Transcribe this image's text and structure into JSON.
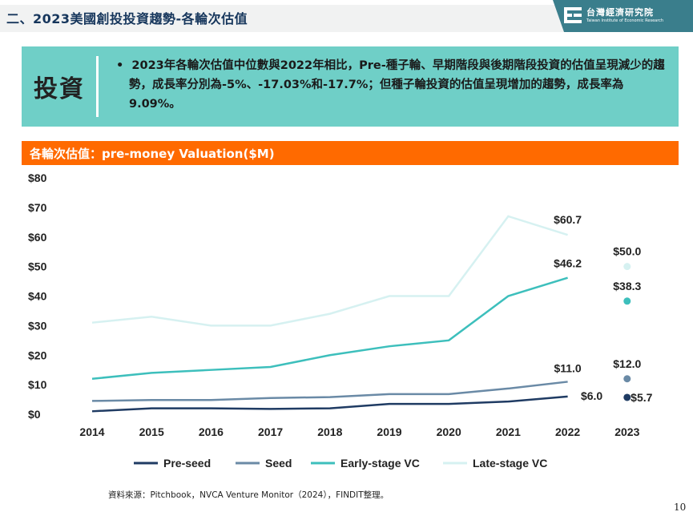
{
  "header": {
    "title": "二、2023美國創投投資趨勢-各輪次估值",
    "logo_name": "台灣經濟研究院",
    "logo_sub": "Taiwan Institute of Economic Research"
  },
  "summary": {
    "label": "投資",
    "bullet": "•",
    "text": "2023年各輪次估值中位數與2022年相比，Pre-種子輪、早期階段與後期階段投資的估值呈現減少的趨勢，成長率分別為-5%、-17.03%和-17.7%；但種子輪投資的估值呈現增加的趨勢，成長率為9.09%。"
  },
  "chart_title": "各輪次估值：pre-money Valuation($M)",
  "chart_data": {
    "type": "line",
    "title": "各輪次估值：pre-money Valuation($M)",
    "categories": [
      "2014",
      "2015",
      "2016",
      "2017",
      "2018",
      "2019",
      "2020",
      "2021",
      "2022",
      "2023"
    ],
    "y_ticks": [
      "$0",
      "$10",
      "$20",
      "$30",
      "$40",
      "$50",
      "$60",
      "$70",
      "$80"
    ],
    "ylim": [
      0,
      80
    ],
    "legend_position": "bottom",
    "grid": false,
    "series": [
      {
        "name": "Pre-seed",
        "color": "#1f3b63",
        "values": [
          1.0,
          2.0,
          2.0,
          1.8,
          2.0,
          3.5,
          3.5,
          4.3,
          6.0,
          5.7
        ],
        "labels": [
          {
            "index": 8,
            "text": "$6.0"
          },
          {
            "index": 9,
            "text": "$5.7"
          }
        ]
      },
      {
        "name": "Seed",
        "color": "#6a8aa6",
        "values": [
          4.5,
          4.8,
          4.8,
          5.5,
          5.8,
          6.8,
          6.8,
          8.7,
          11.0,
          12.0
        ],
        "labels": [
          {
            "index": 8,
            "text": "$11.0"
          },
          {
            "index": 9,
            "text": "$12.0"
          }
        ]
      },
      {
        "name": "Early-stage VC",
        "color": "#3dbfbc",
        "values": [
          12.0,
          14.0,
          15.0,
          16.0,
          20.0,
          23.0,
          25.0,
          40.0,
          46.2,
          38.3
        ],
        "labels": [
          {
            "index": 8,
            "text": "$46.2"
          },
          {
            "index": 9,
            "text": "$38.3"
          }
        ]
      },
      {
        "name": "Late-stage VC",
        "color": "#d6f1f1",
        "values": [
          31.0,
          33.0,
          30.0,
          30.0,
          34.0,
          40.0,
          40.0,
          67.0,
          60.7,
          50.0
        ],
        "labels": [
          {
            "index": 8,
            "text": "$60.7"
          },
          {
            "index": 9,
            "text": "$50.0"
          }
        ]
      }
    ]
  },
  "source": "資料來源：Pitchbook，NVCA Venture Monitor（2024），FINDIT整理。",
  "page_number": "10"
}
